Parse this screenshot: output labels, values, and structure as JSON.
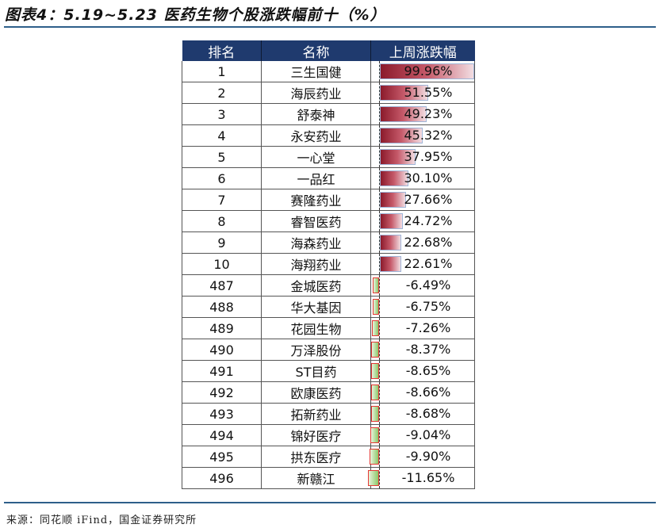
{
  "title": "图表4：5.19~5.23 医药生物个股涨跌幅前十（%）",
  "source": "来源：同花顺 iFind，国金证券研究所",
  "table": {
    "headers": [
      "排名",
      "名称",
      "上周涨跌幅"
    ],
    "rows": [
      {
        "rank": "1",
        "name": "三生国健",
        "change": "99.96%"
      },
      {
        "rank": "2",
        "name": "海辰药业",
        "change": "51.55%"
      },
      {
        "rank": "3",
        "name": "舒泰神",
        "change": "49.23%"
      },
      {
        "rank": "4",
        "name": "永安药业",
        "change": "45.32%"
      },
      {
        "rank": "5",
        "name": "一心堂",
        "change": "37.95%"
      },
      {
        "rank": "6",
        "name": "一品红",
        "change": "30.10%"
      },
      {
        "rank": "7",
        "name": "赛隆药业",
        "change": "27.66%"
      },
      {
        "rank": "8",
        "name": "睿智医药",
        "change": "24.72%"
      },
      {
        "rank": "9",
        "name": "海森药业",
        "change": "22.68%"
      },
      {
        "rank": "10",
        "name": "海翔药业",
        "change": "22.61%"
      },
      {
        "rank": "487",
        "name": "金城医药",
        "change": "-6.49%"
      },
      {
        "rank": "488",
        "name": "华大基因",
        "change": "-6.75%"
      },
      {
        "rank": "489",
        "name": "花园生物",
        "change": "-7.26%"
      },
      {
        "rank": "490",
        "name": "万泽股份",
        "change": "-8.37%"
      },
      {
        "rank": "491",
        "name": "ST目药",
        "change": "-8.65%"
      },
      {
        "rank": "492",
        "name": "欧康医药",
        "change": "-8.66%"
      },
      {
        "rank": "493",
        "name": "拓新药业",
        "change": "-8.68%"
      },
      {
        "rank": "494",
        "name": "锦好医疗",
        "change": "-9.04%"
      },
      {
        "rank": "495",
        "name": "拱东医疗",
        "change": "-9.90%"
      },
      {
        "rank": "496",
        "name": "新赣江",
        "change": "-11.65%"
      }
    ]
  },
  "colors": {
    "header_bg": "#1f3a6e",
    "positive_bar": "#8b1a2b",
    "negative_bar": "#8cc86a",
    "negative_border": "#e53935",
    "rule": "#2e5f8a"
  },
  "chart_data": {
    "type": "table",
    "title": "图表4：5.19~5.23 医药生物个股涨跌幅前十（%）",
    "columns": [
      "排名",
      "名称",
      "上周涨跌幅"
    ],
    "categories": [
      "三生国健",
      "海辰药业",
      "舒泰神",
      "永安药业",
      "一心堂",
      "一品红",
      "赛隆药业",
      "睿智医药",
      "海森药业",
      "海翔药业",
      "金城医药",
      "华大基因",
      "花园生物",
      "万泽股份",
      "ST目药",
      "欧康医药",
      "拓新药业",
      "锦好医疗",
      "拱东医疗",
      "新赣江"
    ],
    "ranks": [
      1,
      2,
      3,
      4,
      5,
      6,
      7,
      8,
      9,
      10,
      487,
      488,
      489,
      490,
      491,
      492,
      493,
      494,
      495,
      496
    ],
    "values": [
      99.96,
      51.55,
      49.23,
      45.32,
      37.95,
      30.1,
      27.66,
      24.72,
      22.68,
      22.61,
      -6.49,
      -6.75,
      -7.26,
      -8.37,
      -8.65,
      -8.66,
      -8.68,
      -9.04,
      -9.9,
      -11.65
    ],
    "data_bars": true,
    "source": "来源：同花顺 iFind，国金证券研究所"
  }
}
